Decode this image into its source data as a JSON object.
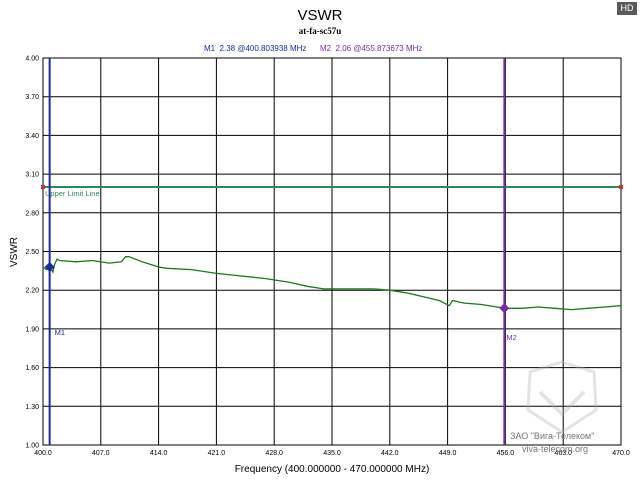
{
  "badge": "HD",
  "chart_data": {
    "type": "line",
    "title": "VSWR",
    "subtitle": "at-fa-sc57u",
    "xlabel": "Frequency (400.000000 - 470.000000 MHz)",
    "ylabel": "VSWR",
    "xlim": [
      400,
      470
    ],
    "ylim": [
      1.0,
      4.0
    ],
    "x_ticks": [
      400,
      407,
      414,
      421,
      428,
      435,
      442,
      449,
      456,
      463,
      470
    ],
    "x_tick_labels": [
      "400.0",
      "407.0",
      "414.0",
      "421.0",
      "428.0",
      "435.0",
      "442.0",
      "449.0",
      "456.0",
      "463.0",
      "470.0"
    ],
    "y_ticks": [
      1.0,
      1.3,
      1.6,
      1.9,
      2.2,
      2.5,
      2.8,
      3.1,
      3.4,
      3.7,
      4.0
    ],
    "y_tick_labels": [
      "1.00",
      "1.30",
      "1.60",
      "1.90",
      "2.20",
      "2.50",
      "2.80",
      "3.10",
      "3.40",
      "3.70",
      "4.00"
    ],
    "grid": true,
    "series": [
      {
        "color": "#1a7a1a",
        "x": [
          400.0,
          400.4,
          400.8,
          401.2,
          401.4,
          401.7,
          402.0,
          404.0,
          406.0,
          408.0,
          409.5,
          410.0,
          410.4,
          412.0,
          414.0,
          415.0,
          418.0,
          421.0,
          424.0,
          427.0,
          430.0,
          432.0,
          434.0,
          436.0,
          438.0,
          440.0,
          442.0,
          444.0,
          446.0,
          448.0,
          449.2,
          449.6,
          451.0,
          453.0,
          455.0,
          456.0,
          458.0,
          460.0,
          462.0,
          464.0,
          466.0,
          468.0,
          470.0
        ],
        "y": [
          2.38,
          2.36,
          2.38,
          2.34,
          2.4,
          2.44,
          2.43,
          2.42,
          2.43,
          2.41,
          2.42,
          2.46,
          2.46,
          2.42,
          2.38,
          2.37,
          2.36,
          2.33,
          2.31,
          2.29,
          2.26,
          2.23,
          2.21,
          2.21,
          2.21,
          2.21,
          2.2,
          2.18,
          2.15,
          2.12,
          2.08,
          2.12,
          2.1,
          2.09,
          2.07,
          2.06,
          2.06,
          2.07,
          2.06,
          2.05,
          2.06,
          2.07,
          2.08
        ]
      }
    ],
    "limit_line": {
      "label": "Upper Limit Line",
      "value": 3.0,
      "color": "#2a8a5a"
    },
    "markers": [
      {
        "name": "M1",
        "x": 400.803938,
        "y": 2.38,
        "color": "#1a2aa0",
        "readout": "M1  2.38 @400.803938 MHz"
      },
      {
        "name": "M2",
        "x": 455.873673,
        "y": 2.06,
        "color": "#7a2aa8",
        "readout": "M2  2.06 @455.873673 MHz"
      }
    ]
  },
  "watermark": {
    "company": "ЗАО \"Вига-Телеком\"",
    "site": "viva-telecom.org"
  }
}
